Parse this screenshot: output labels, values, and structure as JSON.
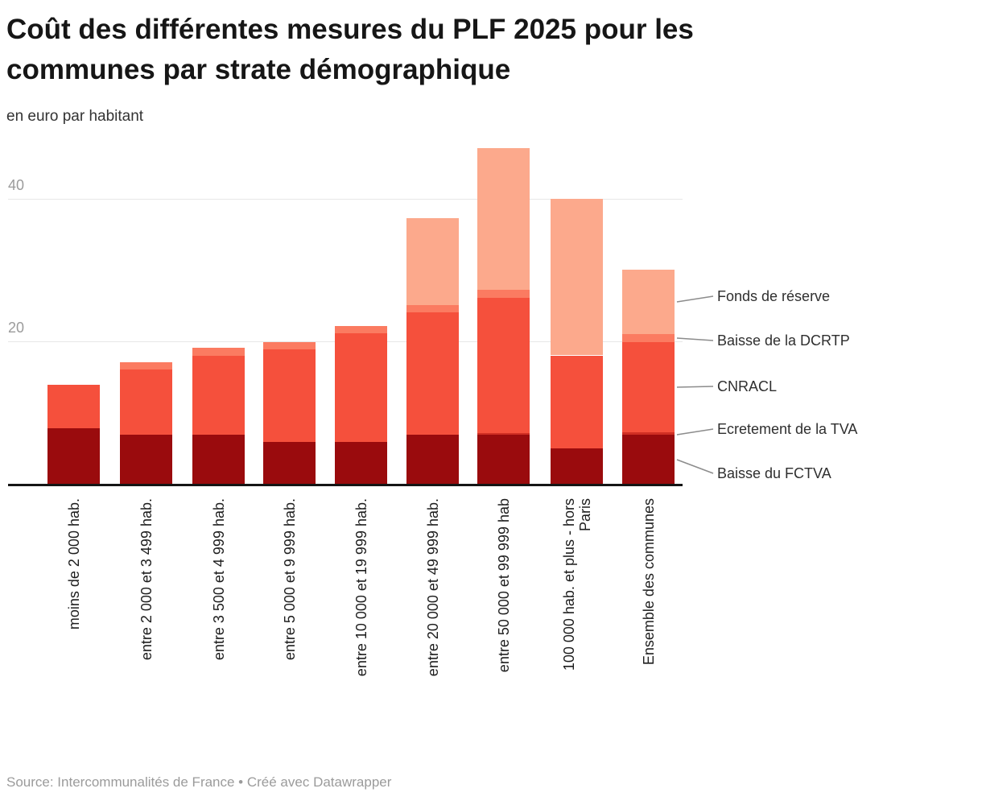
{
  "title": "Coût des différentes mesures du PLF 2025 pour les\ncommunes par strate démographique",
  "subtitle": "en euro par habitant",
  "footer": {
    "text": "Source: Intercommunalités de France • Créé avec Datawrapper"
  },
  "chart_data": {
    "type": "bar",
    "stacked": true,
    "title": "Coût des différentes mesures du PLF 2025 pour les communes par strate démographique",
    "ylabel": "en euro par habitant",
    "xlabel": "",
    "ylim": [
      0,
      50
    ],
    "y_ticks": [
      {
        "value": 20,
        "label": "20"
      },
      {
        "value": 40,
        "label": "40"
      }
    ],
    "grid": true,
    "legend_position": "right-direct-labels",
    "categories": [
      "moins de 2 000 hab.",
      "entre 2 000 et 3 499 hab.",
      "entre 3 500 et 4 999 hab.",
      "entre 5 000 et 9 999 hab.",
      "entre 10 000 et 19 999 hab.",
      "entre 20 000 et 49 999 hab.",
      "entre 50 000 et 99 999 hab",
      "100 000 hab. et plus - hors\nParis",
      "Ensemble des communes"
    ],
    "series": [
      {
        "name": "Baisse du FCTVA",
        "color": "#9a0b0d",
        "values": [
          7.8,
          6.9,
          6.9,
          5.9,
          5.9,
          6.9,
          6.9,
          5.0,
          6.9
        ]
      },
      {
        "name": "Ecretement de la TVA",
        "color": "#d02f23",
        "values": [
          0,
          0,
          0,
          0,
          0,
          0,
          0.2,
          0,
          0.3
        ]
      },
      {
        "name": "CNRACL",
        "color": "#f5503c",
        "values": [
          6.1,
          9.1,
          11.0,
          13.0,
          15.2,
          17.1,
          19.0,
          13.0,
          12.7
        ]
      },
      {
        "name": "Baisse de la DCRTP",
        "color": "#fb7b61",
        "values": [
          0,
          1.0,
          1.2,
          1.0,
          1.0,
          1.1,
          1.1,
          0,
          1.1
        ]
      },
      {
        "name": "Fonds de réserve",
        "color": "#fca98c",
        "values": [
          0,
          0,
          0,
          0,
          0,
          12.1,
          19.9,
          22.0,
          9.0
        ]
      }
    ],
    "totals": [
      13.9,
      17.0,
      19.1,
      19.9,
      22.1,
      37.2,
      47.1,
      40.0,
      30.0
    ],
    "legend_labels_top_to_bottom": [
      "Fonds de réserve",
      "Baisse de la DCRTP",
      "CNRACL",
      "Ecretement de la TVA",
      "Baisse du FCTVA"
    ],
    "annotation_line_color": "#8c8c8c"
  }
}
